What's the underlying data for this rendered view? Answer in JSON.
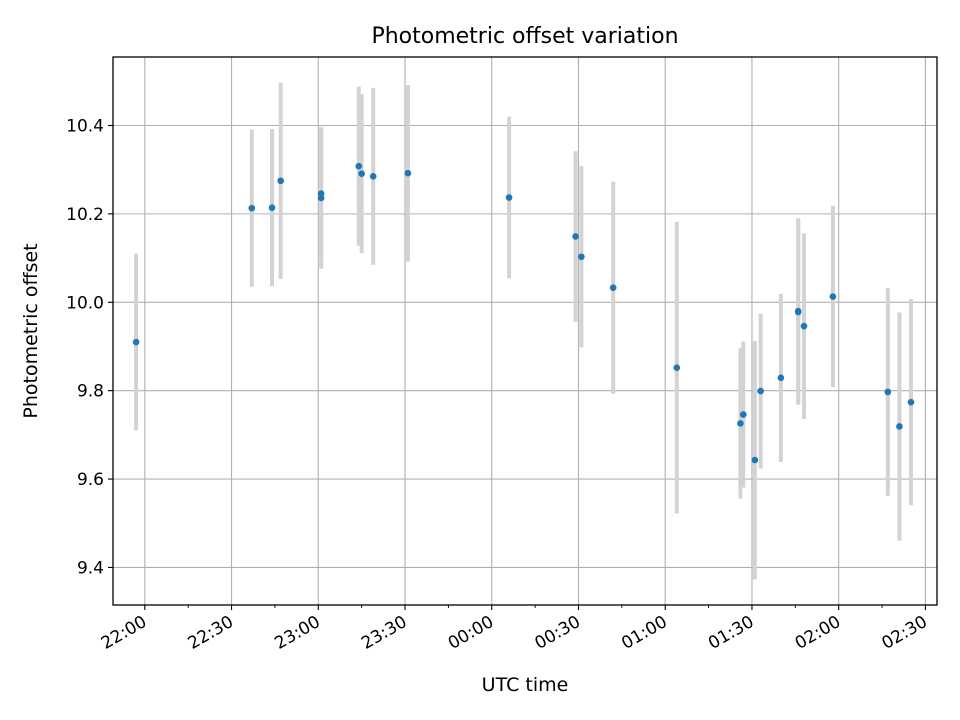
{
  "chart_data": {
    "type": "scatter",
    "title": "Photometric offset variation",
    "xlabel": "UTC time",
    "ylabel": "Photometric offset",
    "x_tick_labels": [
      "22:00",
      "22:30",
      "23:00",
      "23:30",
      "00:00",
      "00:30",
      "01:00",
      "01:30",
      "02:00",
      "02:30"
    ],
    "y_ticks": [
      9.4,
      9.6,
      9.8,
      10.0,
      10.2,
      10.4
    ],
    "y_tick_labels": [
      "9.4",
      "9.6",
      "9.8",
      "10.0",
      "10.2",
      "10.4"
    ],
    "xlim": [
      "21:49",
      "02:34"
    ],
    "ylim": [
      9.315,
      10.555
    ],
    "grid": true,
    "point_color": "#1f77b4",
    "errorbar_color": "#d3d3d3",
    "points": [
      {
        "x": "21:57",
        "y": 9.91,
        "err": 0.2
      },
      {
        "x": "22:37",
        "y": 10.213,
        "err": 0.178
      },
      {
        "x": "22:44",
        "y": 10.214,
        "err": 0.178
      },
      {
        "x": "22:47",
        "y": 10.275,
        "err": 0.222
      },
      {
        "x": "23:01",
        "y": 10.246,
        "err": 0.15
      },
      {
        "x": "23:01",
        "y": 10.236,
        "err": 0.16
      },
      {
        "x": "23:14",
        "y": 10.308,
        "err": 0.18
      },
      {
        "x": "23:15",
        "y": 10.291,
        "err": 0.18
      },
      {
        "x": "23:19",
        "y": 10.285,
        "err": 0.2
      },
      {
        "x": "23:31",
        "y": 10.292,
        "err": 0.2
      },
      {
        "x": "00:06",
        "y": 10.237,
        "err": 0.183
      },
      {
        "x": "00:29",
        "y": 10.149,
        "err": 0.193
      },
      {
        "x": "00:31",
        "y": 10.103,
        "err": 0.205
      },
      {
        "x": "00:42",
        "y": 10.033,
        "err": 0.24
      },
      {
        "x": "01:04",
        "y": 9.852,
        "err": 0.33
      },
      {
        "x": "01:26",
        "y": 9.726,
        "err": 0.17
      },
      {
        "x": "01:27",
        "y": 9.746,
        "err": 0.165
      },
      {
        "x": "01:31",
        "y": 9.643,
        "err": 0.27
      },
      {
        "x": "01:33",
        "y": 9.799,
        "err": 0.175
      },
      {
        "x": "01:40",
        "y": 9.829,
        "err": 0.19
      },
      {
        "x": "01:46",
        "y": 9.978,
        "err": 0.21
      },
      {
        "x": "01:46",
        "y": 9.98,
        "err": 0.21
      },
      {
        "x": "01:48",
        "y": 9.946,
        "err": 0.21
      },
      {
        "x": "01:58",
        "y": 10.013,
        "err": 0.205
      },
      {
        "x": "02:17",
        "y": 9.797,
        "err": 0.235
      },
      {
        "x": "02:21",
        "y": 9.719,
        "err": 0.258
      },
      {
        "x": "02:25",
        "y": 9.774,
        "err": 0.233
      }
    ]
  }
}
